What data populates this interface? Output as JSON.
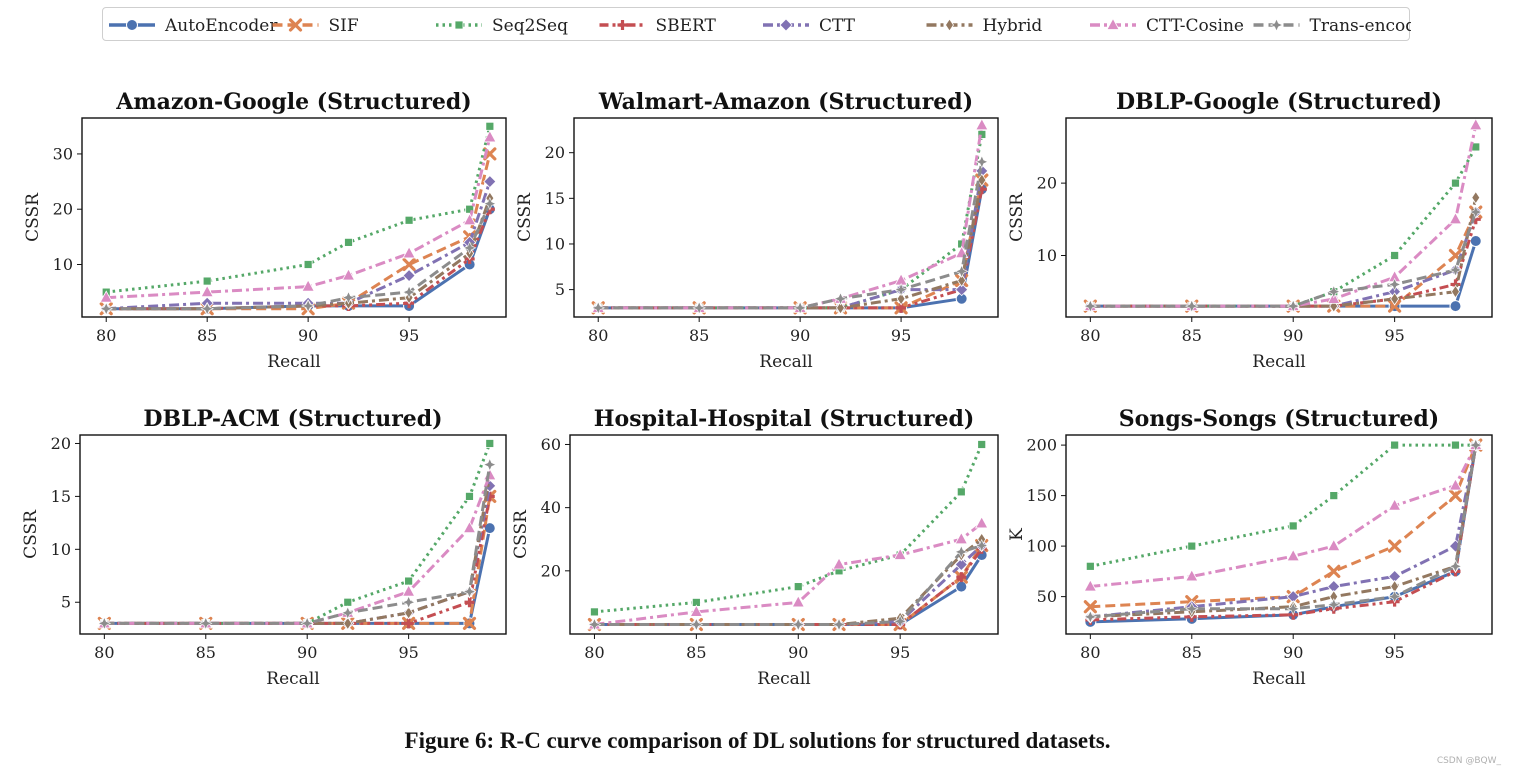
{
  "figure": {
    "caption": "Figure 6: R-C curve comparison of DL solutions for structured datasets.",
    "watermark": "CSDN @BQW_"
  },
  "legend": {
    "position": "top",
    "items": [
      {
        "name": "AutoEncoder",
        "color": "#4c72b0",
        "marker": "circle",
        "dash": "solid"
      },
      {
        "name": "SIF",
        "color": "#dd8452",
        "marker": "x",
        "dash": "dashed"
      },
      {
        "name": "Seq2Seq",
        "color": "#55a868",
        "marker": "square",
        "dash": "dotted"
      },
      {
        "name": "SBERT",
        "color": "#c44e52",
        "marker": "plus",
        "dash": "dashdot2"
      },
      {
        "name": "CTT",
        "color": "#8172b3",
        "marker": "diamond",
        "dash": "dashdot"
      },
      {
        "name": "Hybrid",
        "color": "#937860",
        "marker": "thin-diamond",
        "dash": "dashdot"
      },
      {
        "name": "CTT-Cosine",
        "color": "#da8bc3",
        "marker": "triangle",
        "dash": "dashdot"
      },
      {
        "name": "Trans-encoder",
        "color": "#8c8c8c",
        "marker": "star",
        "dash": "dashed"
      }
    ]
  },
  "chart_data": [
    {
      "type": "line",
      "title": "Amazon-Google (Structured)",
      "xlabel": "Recall",
      "ylabel": "CSSR",
      "xlim": [
        78.8,
        99.8
      ],
      "ylim": [
        0.5,
        36.5
      ],
      "xticks": [
        80,
        85,
        90,
        95
      ],
      "yticks": [
        10,
        20,
        30
      ],
      "x": [
        80,
        85,
        90,
        92,
        95,
        98,
        99
      ],
      "series": [
        {
          "name": "AutoEncoder",
          "values": [
            2,
            2,
            2.5,
            2.5,
            2.5,
            10,
            20
          ]
        },
        {
          "name": "SIF",
          "values": [
            2,
            2,
            2,
            3,
            10,
            15,
            30
          ]
        },
        {
          "name": "Seq2Seq",
          "values": [
            5,
            7,
            10,
            14,
            18,
            20,
            35
          ]
        },
        {
          "name": "SBERT",
          "values": [
            2,
            2,
            2.5,
            2.5,
            3,
            11,
            20
          ]
        },
        {
          "name": "CTT",
          "values": [
            2,
            3,
            3,
            3,
            8,
            14,
            25
          ]
        },
        {
          "name": "Hybrid",
          "values": [
            2,
            2,
            2.5,
            3,
            4,
            12,
            22
          ]
        },
        {
          "name": "CTT-Cosine",
          "values": [
            4,
            5,
            6,
            8,
            12,
            18,
            33
          ]
        },
        {
          "name": "Trans-encoder",
          "values": [
            2,
            2,
            2.5,
            4,
            5,
            13,
            21
          ]
        }
      ]
    },
    {
      "type": "line",
      "title": "Walmart-Amazon (Structured)",
      "xlabel": "Recall",
      "ylabel": "CSSR",
      "xlim": [
        78.8,
        99.8
      ],
      "ylim": [
        2.0,
        23.8
      ],
      "xticks": [
        80,
        85,
        90,
        95
      ],
      "yticks": [
        5,
        10,
        15,
        20
      ],
      "x": [
        80,
        85,
        90,
        92,
        95,
        98,
        99
      ],
      "series": [
        {
          "name": "AutoEncoder",
          "values": [
            3,
            3,
            3,
            3,
            3,
            4,
            16
          ]
        },
        {
          "name": "SIF",
          "values": [
            3,
            3,
            3,
            3,
            3,
            6,
            17
          ]
        },
        {
          "name": "Seq2Seq",
          "values": [
            3,
            3,
            3,
            3,
            5,
            10,
            22
          ]
        },
        {
          "name": "SBERT",
          "values": [
            3,
            3,
            3,
            3,
            3,
            5,
            16
          ]
        },
        {
          "name": "CTT",
          "values": [
            3,
            3,
            3,
            3,
            5,
            5,
            18
          ]
        },
        {
          "name": "Hybrid",
          "values": [
            3,
            3,
            3,
            3,
            4,
            6,
            17
          ]
        },
        {
          "name": "CTT-Cosine",
          "values": [
            3,
            3,
            3,
            4,
            6,
            9,
            23
          ]
        },
        {
          "name": "Trans-encoder",
          "values": [
            3,
            3,
            3,
            4,
            5,
            7,
            19
          ]
        }
      ]
    },
    {
      "type": "line",
      "title": "DBLP-Google (Structured)",
      "xlabel": "Recall",
      "ylabel": "CSSR",
      "xlim": [
        78.8,
        99.8
      ],
      "ylim": [
        1.5,
        29.0
      ],
      "xticks": [
        80,
        85,
        90,
        95
      ],
      "yticks": [
        10,
        20
      ],
      "x": [
        80,
        85,
        90,
        92,
        95,
        98,
        99
      ],
      "series": [
        {
          "name": "AutoEncoder",
          "values": [
            3,
            3,
            3,
            3,
            3,
            3,
            12
          ]
        },
        {
          "name": "SIF",
          "values": [
            3,
            3,
            3,
            3,
            3,
            10,
            16
          ]
        },
        {
          "name": "Seq2Seq",
          "values": [
            3,
            3,
            3,
            5,
            10,
            20,
            25
          ]
        },
        {
          "name": "SBERT",
          "values": [
            3,
            3,
            3,
            3,
            4,
            6,
            15
          ]
        },
        {
          "name": "CTT",
          "values": [
            3,
            3,
            3,
            3,
            5,
            8,
            16
          ]
        },
        {
          "name": "Hybrid",
          "values": [
            3,
            3,
            3,
            3,
            4,
            5,
            18
          ]
        },
        {
          "name": "CTT-Cosine",
          "values": [
            3,
            3,
            3,
            4,
            7,
            15,
            28
          ]
        },
        {
          "name": "Trans-encoder",
          "values": [
            3,
            3,
            3,
            5,
            6,
            8,
            16
          ]
        }
      ]
    },
    {
      "type": "line",
      "title": "DBLP-ACM (Structured)",
      "xlabel": "Recall",
      "ylabel": "CSSR",
      "xlim": [
        78.8,
        99.8
      ],
      "ylim": [
        2.0,
        20.8
      ],
      "xticks": [
        80,
        85,
        90,
        95
      ],
      "yticks": [
        5,
        10,
        15,
        20
      ],
      "x": [
        80,
        85,
        90,
        92,
        95,
        98,
        99
      ],
      "series": [
        {
          "name": "AutoEncoder",
          "values": [
            3,
            3,
            3,
            3,
            3,
            3,
            12
          ]
        },
        {
          "name": "SIF",
          "values": [
            3,
            3,
            3,
            3,
            3,
            3,
            15
          ]
        },
        {
          "name": "Seq2Seq",
          "values": [
            3,
            3,
            3,
            5,
            7,
            15,
            20
          ]
        },
        {
          "name": "SBERT",
          "values": [
            3,
            3,
            3,
            3,
            3,
            5,
            15
          ]
        },
        {
          "name": "CTT",
          "values": [
            3,
            3,
            3,
            3,
            4,
            6,
            16
          ]
        },
        {
          "name": "Hybrid",
          "values": [
            3,
            3,
            3,
            3,
            4,
            6,
            17
          ]
        },
        {
          "name": "CTT-Cosine",
          "values": [
            3,
            3,
            3,
            4,
            6,
            12,
            17
          ]
        },
        {
          "name": "Trans-encoder",
          "values": [
            3,
            3,
            3,
            4,
            5,
            6,
            18
          ]
        }
      ]
    },
    {
      "type": "line",
      "title": "Hospital-Hospital (Structured)",
      "xlabel": "Recall",
      "ylabel": "CSSR",
      "xlim": [
        78.8,
        99.8
      ],
      "ylim": [
        0.0,
        63.0
      ],
      "xticks": [
        80,
        85,
        90,
        95
      ],
      "yticks": [
        20,
        40,
        60
      ],
      "x": [
        80,
        85,
        90,
        92,
        95,
        98,
        99
      ],
      "series": [
        {
          "name": "AutoEncoder",
          "values": [
            3,
            3,
            3,
            3,
            3,
            15,
            25
          ]
        },
        {
          "name": "SIF",
          "values": [
            3,
            3,
            3,
            3,
            3,
            18,
            28
          ]
        },
        {
          "name": "Seq2Seq",
          "values": [
            7,
            10,
            15,
            20,
            25,
            45,
            60
          ]
        },
        {
          "name": "SBERT",
          "values": [
            3,
            3,
            3,
            3,
            3,
            18,
            27
          ]
        },
        {
          "name": "CTT",
          "values": [
            3,
            3,
            3,
            3,
            4,
            22,
            28
          ]
        },
        {
          "name": "Hybrid",
          "values": [
            3,
            3,
            3,
            3,
            5,
            25,
            30
          ]
        },
        {
          "name": "CTT-Cosine",
          "values": [
            3,
            7,
            10,
            22,
            25,
            30,
            35
          ]
        },
        {
          "name": "Trans-encoder",
          "values": [
            3,
            3,
            3,
            3,
            4,
            26,
            28
          ]
        }
      ]
    },
    {
      "type": "line",
      "title": "Songs-Songs (Structured)",
      "xlabel": "Recall",
      "ylabel": "K",
      "xlim": [
        78.8,
        99.8
      ],
      "ylim": [
        13.0,
        210.0
      ],
      "xticks": [
        80,
        85,
        90,
        95
      ],
      "yticks": [
        50,
        100,
        150,
        200
      ],
      "x": [
        80,
        85,
        90,
        92,
        95,
        98,
        99
      ],
      "series": [
        {
          "name": "AutoEncoder",
          "values": [
            25,
            28,
            32,
            40,
            50,
            75,
            200
          ]
        },
        {
          "name": "SIF",
          "values": [
            40,
            45,
            50,
            75,
            100,
            150,
            200
          ]
        },
        {
          "name": "Seq2Seq",
          "values": [
            80,
            100,
            120,
            150,
            200,
            200,
            200
          ]
        },
        {
          "name": "SBERT",
          "values": [
            27,
            30,
            32,
            38,
            45,
            75,
            200
          ]
        },
        {
          "name": "CTT",
          "values": [
            30,
            40,
            50,
            60,
            70,
            100,
            200
          ]
        },
        {
          "name": "Hybrid",
          "values": [
            30,
            35,
            40,
            50,
            60,
            80,
            200
          ]
        },
        {
          "name": "CTT-Cosine",
          "values": [
            60,
            70,
            90,
            100,
            140,
            160,
            200
          ]
        },
        {
          "name": "Trans-encoder",
          "values": [
            30,
            38,
            38,
            42,
            50,
            80,
            200
          ]
        }
      ]
    }
  ]
}
